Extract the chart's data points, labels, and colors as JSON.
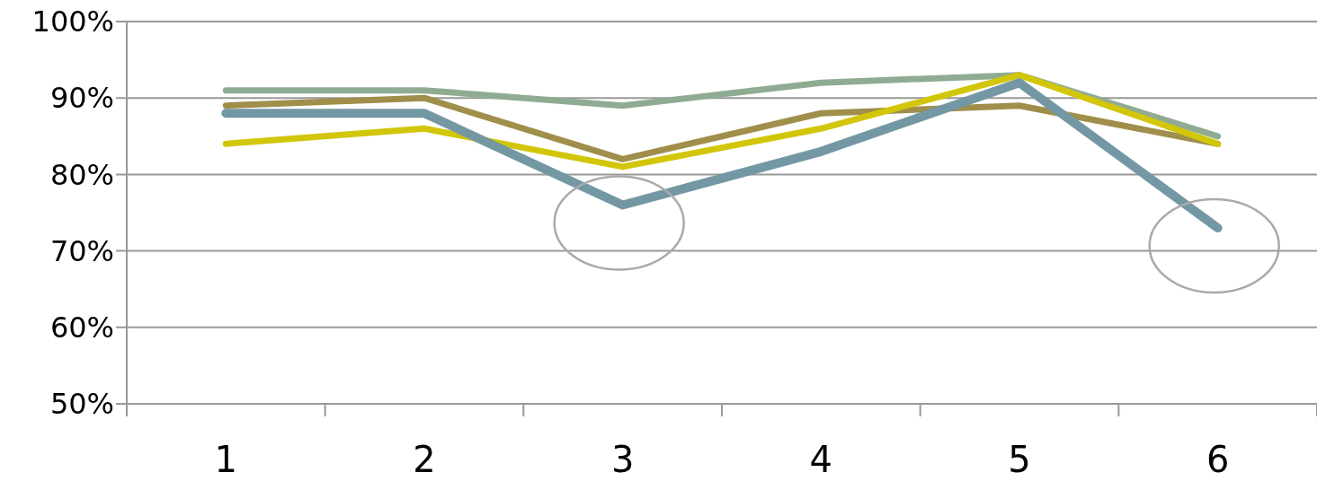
{
  "chart_data": {
    "type": "line",
    "categories": [
      "1",
      "2",
      "3",
      "4",
      "5",
      "6"
    ],
    "series": [
      {
        "color": "#8fac93",
        "values": [
          91,
          91,
          89,
          92,
          93,
          85
        ]
      },
      {
        "color": "#a08e4b",
        "values": [
          89,
          90,
          82,
          88,
          89,
          84
        ]
      },
      {
        "color": "#d2c60a",
        "values": [
          84,
          86,
          81,
          86,
          93,
          84
        ]
      },
      {
        "color": "#7398a4",
        "values": [
          88,
          88,
          76,
          83,
          92,
          73
        ]
      }
    ],
    "ylim": [
      50,
      100
    ],
    "yticks": [
      {
        "value": 50,
        "label": "50%"
      },
      {
        "value": 60,
        "label": "60%"
      },
      {
        "value": 70,
        "label": "70%"
      },
      {
        "value": 80,
        "label": "80%"
      },
      {
        "value": 90,
        "label": "90%"
      },
      {
        "value": 100,
        "label": "100%"
      }
    ],
    "grid": "y",
    "marker": "none",
    "line_style": "solid"
  }
}
